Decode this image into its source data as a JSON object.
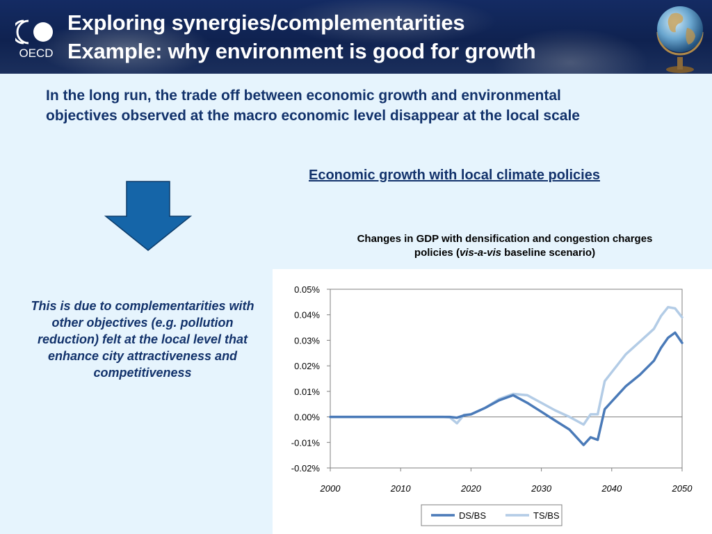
{
  "slide": {
    "title_line1": "Exploring synergies/complementarities",
    "title_line2": "Example: why environment is good for growth",
    "logo_text": "OECD",
    "intro_text": "In the long run, the trade off between economic growth and environmental objectives observed at the macro economic level disappear at the local scale",
    "subheading": "Economic growth with local climate policies",
    "side_note": "This is due to complementarities with other objectives (e.g. pollution reduction) felt at the local level that enhance city attractiveness and competitiveness",
    "chart_title_line1": "Changes in GDP with densification and congestion charges",
    "chart_title_line2_pre": "policies (",
    "chart_title_line2_italic": "vis-a-vis",
    "chart_title_line2_post": " baseline scenario)"
  },
  "colors": {
    "banner": "#142b63",
    "text_navy": "#12326b",
    "arrow_fill": "#1565a8",
    "series_ds": "#4a7ab8",
    "series_ts": "#b3cce6"
  },
  "chart_data": {
    "type": "line",
    "x": [
      2000,
      2002,
      2004,
      2006,
      2008,
      2010,
      2012,
      2014,
      2016,
      2017,
      2018,
      2019,
      2020,
      2022,
      2024,
      2026,
      2028,
      2030,
      2032,
      2034,
      2035,
      2036,
      2037,
      2038,
      2039,
      2040,
      2042,
      2044,
      2046,
      2047,
      2048,
      2049,
      2050
    ],
    "series": [
      {
        "name": "DS/BS",
        "values": [
          0.0,
          0.0,
          0.0,
          0.0,
          0.0,
          0.0,
          0.0,
          0.0,
          0.0,
          0.0,
          -0.0003,
          0.0006,
          0.001,
          0.0035,
          0.0065,
          0.0085,
          0.0055,
          0.002,
          -0.0015,
          -0.005,
          -0.008,
          -0.011,
          -0.008,
          -0.009,
          0.003,
          0.006,
          0.012,
          0.0165,
          0.022,
          0.027,
          0.031,
          0.033,
          0.029
        ]
      },
      {
        "name": "TS/BS",
        "values": [
          0.0,
          0.0,
          0.0,
          0.0,
          0.0,
          0.0,
          0.0,
          0.0,
          0.0,
          -0.0002,
          -0.0025,
          0.0008,
          0.001,
          0.0035,
          0.007,
          0.009,
          0.0085,
          0.0055,
          0.0025,
          0.0,
          -0.0015,
          -0.003,
          0.001,
          0.001,
          0.014,
          0.0175,
          0.0245,
          0.0295,
          0.0345,
          0.0395,
          0.043,
          0.0425,
          0.039
        ]
      }
    ],
    "y_tick_labels": [
      "0.05%",
      "0.04%",
      "0.03%",
      "0.02%",
      "0.01%",
      "0.00%",
      "-0.01%",
      "-0.02%"
    ],
    "x_tick_labels": [
      "2000",
      "2010",
      "2020",
      "2030",
      "2040",
      "2050"
    ],
    "xlim": [
      2000,
      2050
    ],
    "ylim": [
      -0.02,
      0.05
    ],
    "y_unit": "%",
    "grid": false,
    "legend_position": "bottom-center"
  }
}
